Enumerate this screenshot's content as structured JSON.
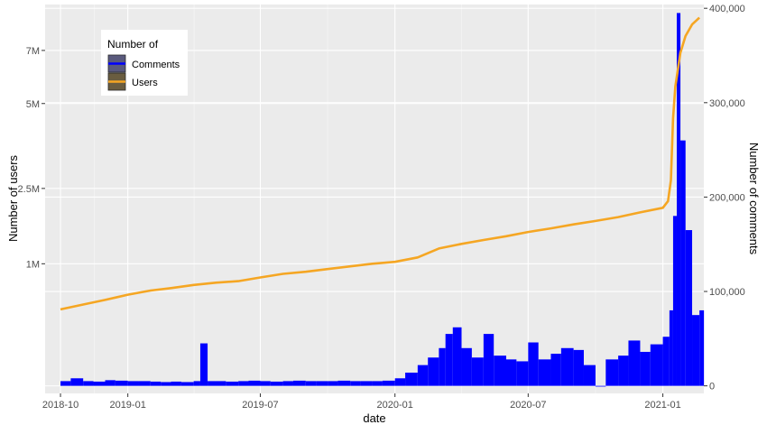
{
  "chart_data": {
    "type": "bar",
    "xlabel": "date",
    "ylabel_left": "Number of users",
    "ylabel_right": "Number of comments",
    "x_ticks": [
      "2018-10",
      "2019-01",
      "2019-07",
      "2020-01",
      "2020-07",
      "2021-01"
    ],
    "x_tick_dates": [
      "2018-10-01",
      "2019-01-01",
      "2019-07-01",
      "2020-01-01",
      "2020-07-01",
      "2021-01-01"
    ],
    "xlim": [
      "2018-09-10",
      "2021-02-26"
    ],
    "y_left_ticks": [
      {
        "label": "1M",
        "value": 1000000
      },
      {
        "label": "2.5M",
        "value": 2500000
      },
      {
        "label": "5M",
        "value": 5000000
      },
      {
        "label": "7M",
        "value": 7000000
      }
    ],
    "y_left_scale": "sqrt",
    "y_left_lim": [
      0,
      9000000
    ],
    "y_right_ticks": [
      {
        "label": "0",
        "value": 0
      },
      {
        "label": "100,000",
        "value": 100000
      },
      {
        "label": "200,000",
        "value": 200000
      },
      {
        "label": "300,000",
        "value": 300000
      },
      {
        "label": "400,000",
        "value": 400000
      }
    ],
    "y_right_lim": [
      -8000,
      404000
    ],
    "grid": true,
    "legend": {
      "title": "Number of",
      "position": "top-left",
      "entries": [
        {
          "label": "Comments",
          "color": "#0000ff"
        },
        {
          "label": "Users",
          "color": "#f5a623"
        }
      ]
    },
    "series": [
      {
        "name": "Comments",
        "axis": "right",
        "kind": "bar",
        "color": "#0000ff",
        "points": [
          [
            "2018-10-01",
            5000
          ],
          [
            "2018-10-15",
            8000
          ],
          [
            "2018-11-01",
            5000
          ],
          [
            "2018-11-15",
            4500
          ],
          [
            "2018-12-01",
            6000
          ],
          [
            "2018-12-15",
            5500
          ],
          [
            "2019-01-01",
            5000
          ],
          [
            "2019-01-15",
            5000
          ],
          [
            "2019-02-01",
            4500
          ],
          [
            "2019-02-15",
            4000
          ],
          [
            "2019-03-01",
            4500
          ],
          [
            "2019-03-15",
            4000
          ],
          [
            "2019-04-01",
            5000
          ],
          [
            "2019-04-10",
            45000
          ],
          [
            "2019-04-20",
            5000
          ],
          [
            "2019-05-01",
            5000
          ],
          [
            "2019-05-15",
            4500
          ],
          [
            "2019-06-01",
            5000
          ],
          [
            "2019-06-15",
            5500
          ],
          [
            "2019-07-01",
            5000
          ],
          [
            "2019-07-15",
            4500
          ],
          [
            "2019-08-01",
            5000
          ],
          [
            "2019-08-15",
            5500
          ],
          [
            "2019-09-01",
            5000
          ],
          [
            "2019-09-15",
            5000
          ],
          [
            "2019-10-01",
            5000
          ],
          [
            "2019-10-15",
            5500
          ],
          [
            "2019-11-01",
            5000
          ],
          [
            "2019-11-15",
            5000
          ],
          [
            "2019-12-01",
            5000
          ],
          [
            "2019-12-15",
            5500
          ],
          [
            "2020-01-01",
            8000
          ],
          [
            "2020-01-15",
            14000
          ],
          [
            "2020-02-01",
            22000
          ],
          [
            "2020-02-15",
            30000
          ],
          [
            "2020-03-01",
            40000
          ],
          [
            "2020-03-10",
            55000
          ],
          [
            "2020-03-20",
            62000
          ],
          [
            "2020-04-01",
            40000
          ],
          [
            "2020-04-15",
            30000
          ],
          [
            "2020-05-01",
            55000
          ],
          [
            "2020-05-15",
            32000
          ],
          [
            "2020-06-01",
            28000
          ],
          [
            "2020-06-15",
            26000
          ],
          [
            "2020-07-01",
            46000
          ],
          [
            "2020-07-15",
            28000
          ],
          [
            "2020-08-01",
            34000
          ],
          [
            "2020-08-15",
            40000
          ],
          [
            "2020-09-01",
            38000
          ],
          [
            "2020-09-15",
            22000
          ],
          [
            "2020-10-01",
            0
          ],
          [
            "2020-10-15",
            28000
          ],
          [
            "2020-11-01",
            32000
          ],
          [
            "2020-11-15",
            48000
          ],
          [
            "2020-12-01",
            36000
          ],
          [
            "2020-12-15",
            44000
          ],
          [
            "2021-01-01",
            52000
          ],
          [
            "2021-01-10",
            80000
          ],
          [
            "2021-01-15",
            180000
          ],
          [
            "2021-01-20",
            395000
          ],
          [
            "2021-01-25",
            260000
          ],
          [
            "2021-02-01",
            165000
          ],
          [
            "2021-02-10",
            75000
          ],
          [
            "2021-02-20",
            80000
          ]
        ]
      },
      {
        "name": "Users",
        "axis": "left",
        "kind": "line",
        "color": "#f5a623",
        "points": [
          [
            "2018-10-01",
            420000
          ],
          [
            "2018-11-01",
            470000
          ],
          [
            "2018-12-01",
            520000
          ],
          [
            "2019-01-01",
            580000
          ],
          [
            "2019-02-01",
            630000
          ],
          [
            "2019-03-01",
            660000
          ],
          [
            "2019-04-01",
            700000
          ],
          [
            "2019-05-01",
            730000
          ],
          [
            "2019-06-01",
            750000
          ],
          [
            "2019-07-01",
            800000
          ],
          [
            "2019-08-01",
            850000
          ],
          [
            "2019-09-01",
            880000
          ],
          [
            "2019-10-01",
            920000
          ],
          [
            "2019-11-01",
            960000
          ],
          [
            "2019-12-01",
            1000000
          ],
          [
            "2020-01-01",
            1030000
          ],
          [
            "2020-02-01",
            1100000
          ],
          [
            "2020-03-01",
            1250000
          ],
          [
            "2020-04-01",
            1330000
          ],
          [
            "2020-05-01",
            1400000
          ],
          [
            "2020-06-01",
            1470000
          ],
          [
            "2020-07-01",
            1550000
          ],
          [
            "2020-08-01",
            1620000
          ],
          [
            "2020-09-01",
            1700000
          ],
          [
            "2020-10-01",
            1770000
          ],
          [
            "2020-11-01",
            1850000
          ],
          [
            "2020-12-01",
            1950000
          ],
          [
            "2021-01-01",
            2050000
          ],
          [
            "2021-01-08",
            2200000
          ],
          [
            "2021-01-12",
            2700000
          ],
          [
            "2021-01-15",
            4500000
          ],
          [
            "2021-01-18",
            5600000
          ],
          [
            "2021-01-25",
            6900000
          ],
          [
            "2021-02-01",
            7600000
          ],
          [
            "2021-02-10",
            8100000
          ],
          [
            "2021-02-20",
            8400000
          ]
        ]
      }
    ]
  }
}
